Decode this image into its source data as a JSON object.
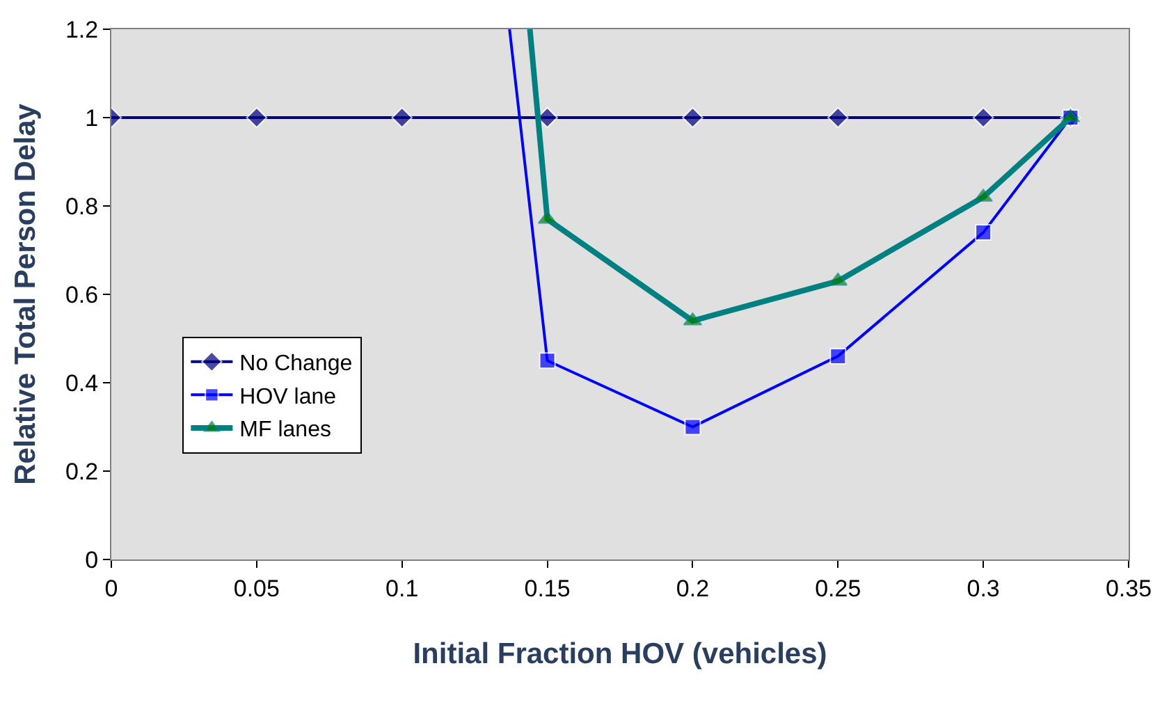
{
  "chart_data": {
    "type": "line",
    "xlabel": "Initial Fraction HOV (vehicles)",
    "ylabel": "Relative Total Person Delay",
    "xlim": [
      0,
      0.35
    ],
    "xticks": [
      0,
      0.05,
      0.1,
      0.15,
      0.2,
      0.25,
      0.3,
      0.35
    ],
    "ylim": [
      0,
      1.2
    ],
    "yticks": [
      0,
      0.2,
      0.4,
      0.6,
      0.8,
      1,
      1.2
    ],
    "grid": false,
    "legend": "left",
    "series": [
      {
        "name": "No Change",
        "color": "#000080",
        "marker": "diamond",
        "x": [
          0,
          0.05,
          0.1,
          0.15,
          0.2,
          0.25,
          0.3,
          0.33
        ],
        "values": [
          1,
          1,
          1,
          1,
          1,
          1,
          1,
          1
        ]
      },
      {
        "name": "HOV lane",
        "color": "#0000ff",
        "marker": "square",
        "x": [
          0.137,
          0.15,
          0.2,
          0.25,
          0.3,
          0.33
        ],
        "values": [
          1.2,
          0.45,
          0.3,
          0.46,
          0.74,
          1
        ]
      },
      {
        "name": "MF lanes",
        "color": "#008080",
        "colors": [
          "#008000",
          "#008000",
          "#008000",
          "#008000",
          "#008000",
          "#008000"
        ],
        "marker": "triangle",
        "x": [
          0.144,
          0.15,
          0.2,
          0.25,
          0.3,
          0.33
        ],
        "values": [
          1.2,
          0.77,
          0.54,
          0.63,
          0.82,
          1
        ]
      }
    ]
  }
}
